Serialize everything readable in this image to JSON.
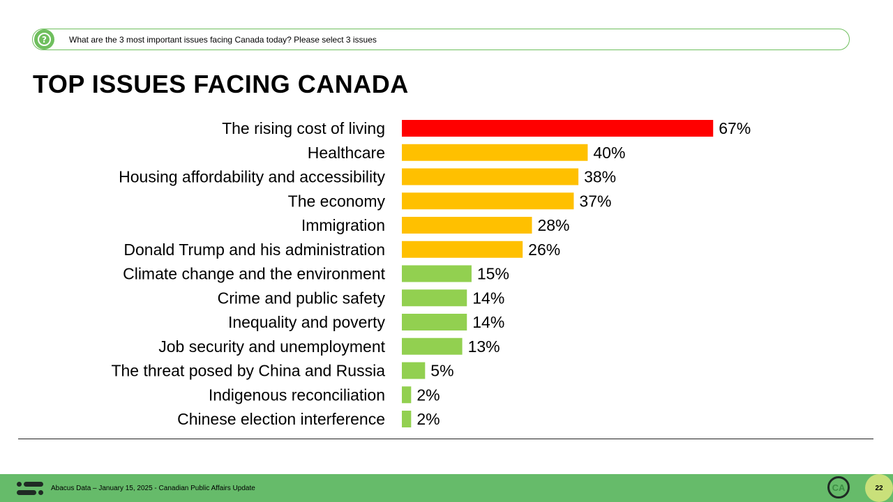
{
  "question": {
    "icon": "question-mark-icon",
    "text": "What are the 3 most important issues facing Canada today? Please select 3 issues"
  },
  "title": "TOP ISSUES FACING CANADA",
  "chart_data": {
    "type": "bar",
    "orientation": "horizontal",
    "categories": [
      "The rising cost of living",
      "Healthcare",
      "Housing affordability and accessibility",
      "The economy",
      "Immigration",
      "Donald Trump and his administration",
      "Climate change and the environment",
      "Crime and public safety",
      "Inequality and poverty",
      "Job security and unemployment",
      "The threat posed by China and Russia",
      "Indigenous reconciliation",
      "Chinese election interference"
    ],
    "values": [
      67,
      40,
      38,
      37,
      28,
      26,
      15,
      14,
      14,
      13,
      5,
      2,
      2
    ],
    "value_labels": [
      "67%",
      "40%",
      "38%",
      "37%",
      "28%",
      "26%",
      "15%",
      "14%",
      "14%",
      "13%",
      "5%",
      "2%",
      "2%"
    ],
    "bar_colors": [
      "#ff0000",
      "#ffc000",
      "#ffc000",
      "#ffc000",
      "#ffc000",
      "#ffc000",
      "#92d050",
      "#92d050",
      "#92d050",
      "#92d050",
      "#92d050",
      "#92d050",
      "#92d050"
    ],
    "unit": "%",
    "xlim": [
      0,
      100
    ],
    "grid": false,
    "legend": "none"
  },
  "footer": {
    "logo_icon": "abacus-logo-icon",
    "text": "Abacus Data – January 15, 2025 - Canadian Public Affairs Update",
    "badge_text": "CA",
    "page_number": "22"
  },
  "colors": {
    "accent_green": "#66bb6a",
    "page_badge": "#c9e07a"
  }
}
